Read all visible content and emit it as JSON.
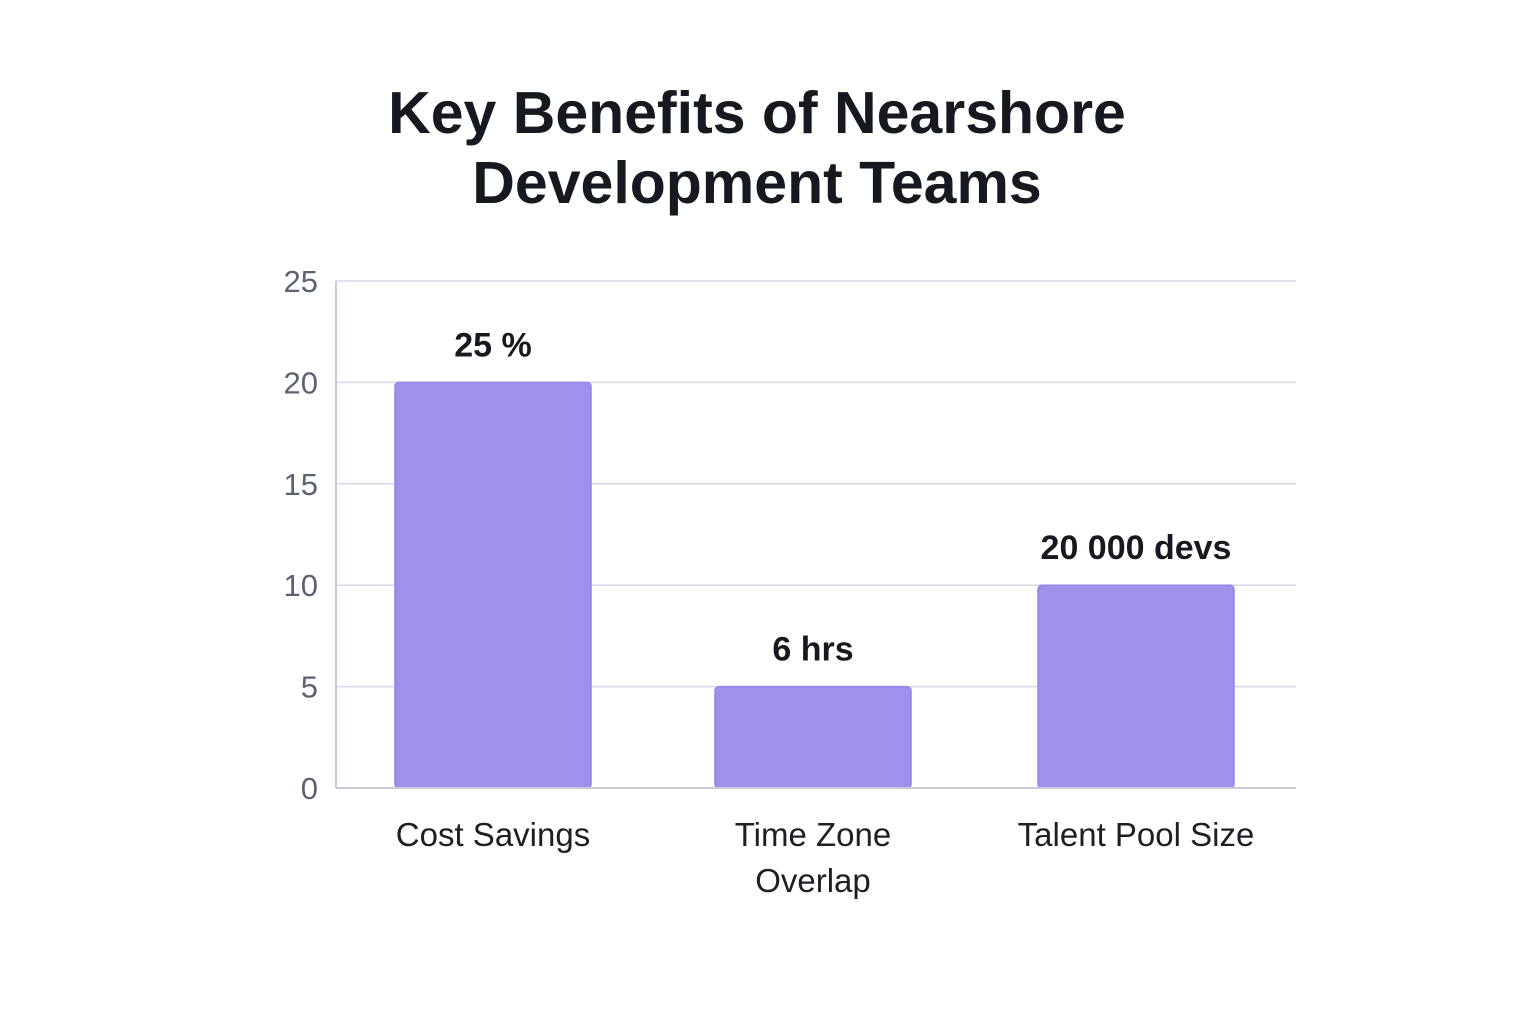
{
  "chart_data": {
    "type": "bar",
    "title": [
      "Key Benefits of Nearshore",
      "Development Teams"
    ],
    "xlabel": "",
    "ylabel": "",
    "categories": [
      [
        "Cost Savings"
      ],
      [
        "Time Zone",
        "Overlap"
      ],
      [
        "Talent Pool Size"
      ]
    ],
    "values": [
      20,
      5,
      10
    ],
    "data_labels": [
      "25 %",
      "6 hrs",
      "20 000 devs"
    ],
    "yticks": [
      0,
      5,
      10,
      15,
      20,
      25
    ],
    "ylim": [
      0,
      25
    ],
    "grid": true,
    "legend": "none",
    "colors": {
      "bar": "#a18fec",
      "bar_stroke": "#9684e6",
      "grid": "#d6d9e6",
      "axis": "#c9ccd8"
    }
  }
}
